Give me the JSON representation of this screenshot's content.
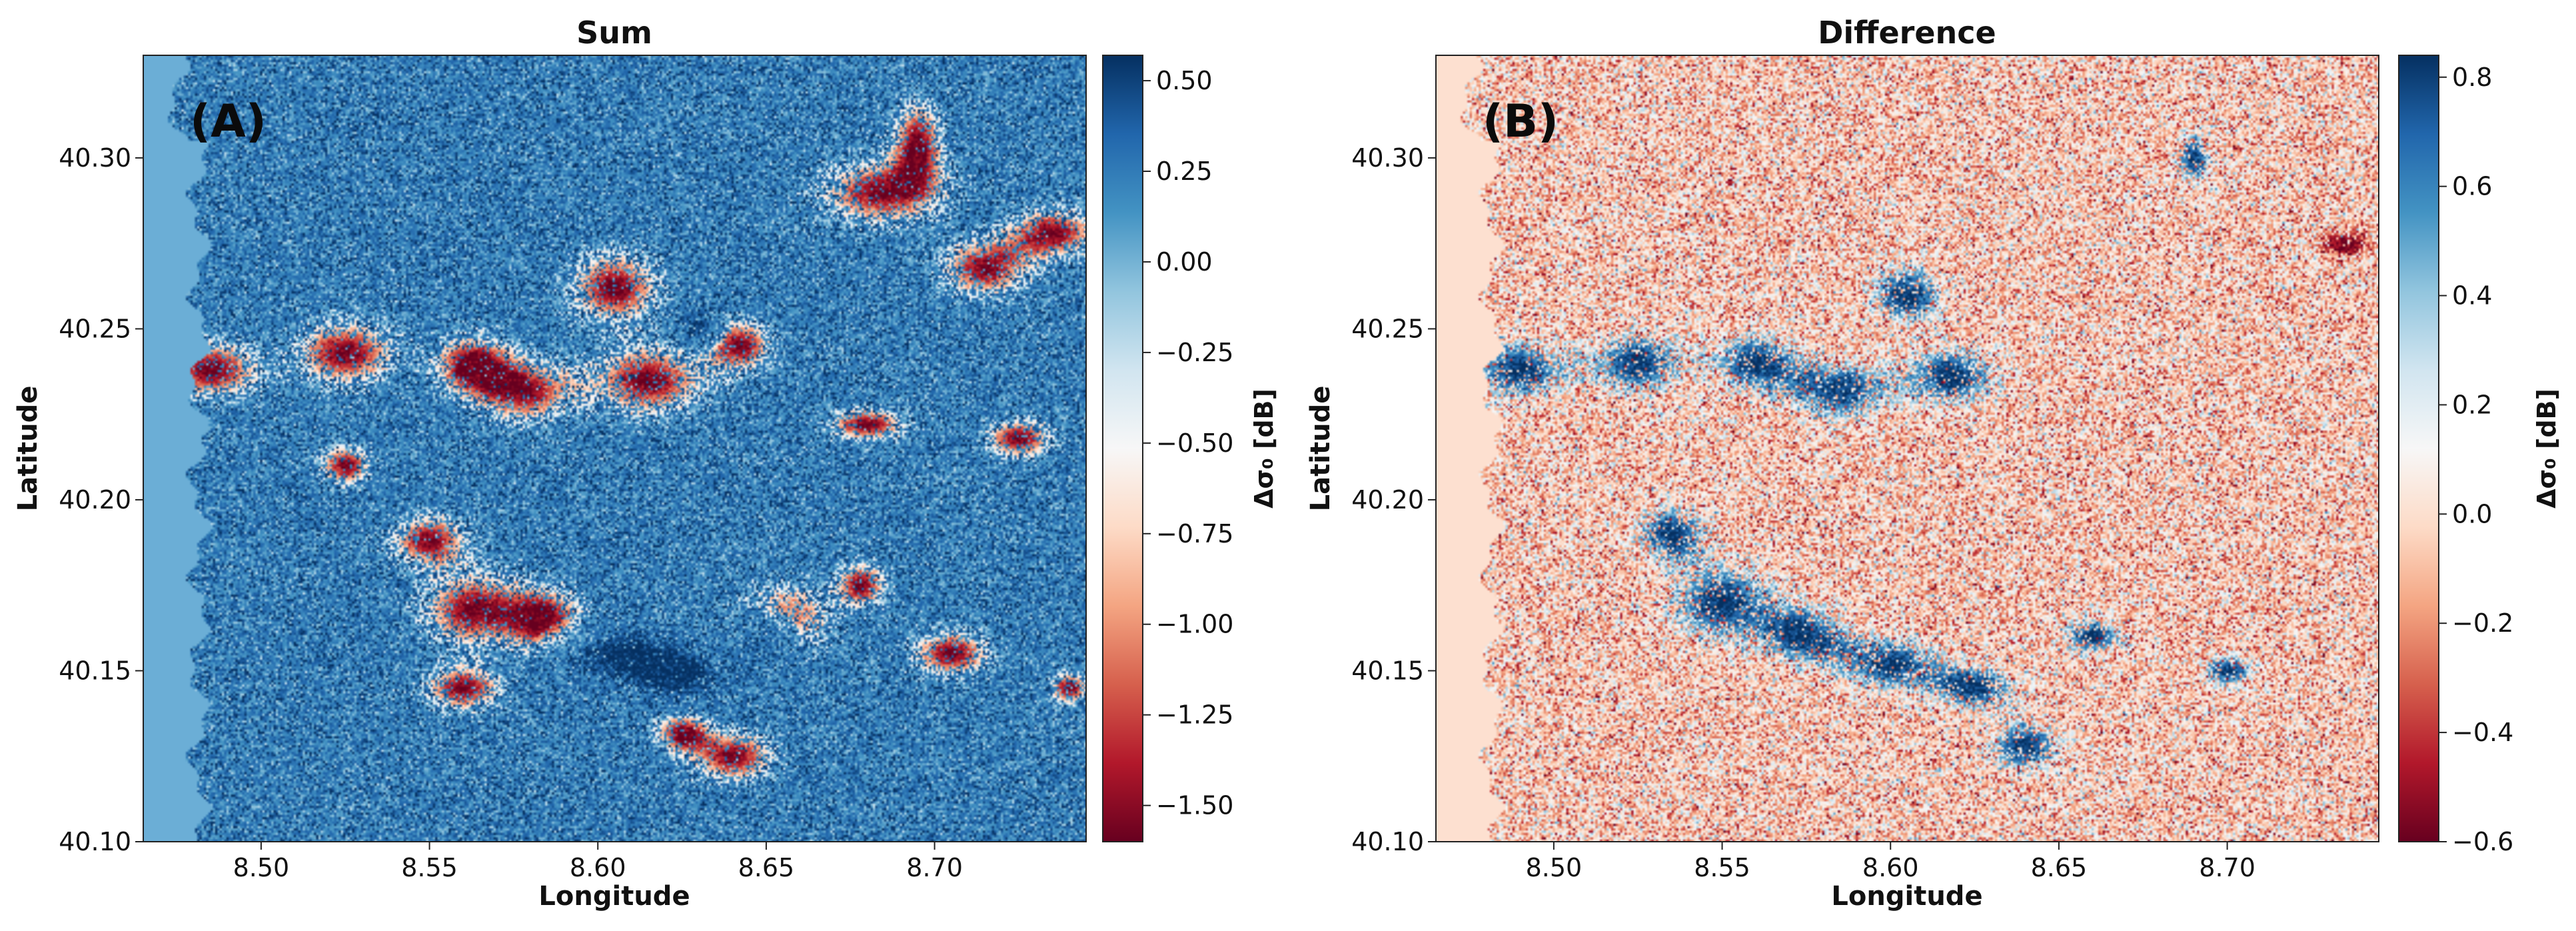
{
  "figure": {
    "panels": [
      {
        "key": "sum",
        "panel_label": "(A)",
        "land_color": "#6baed6",
        "blob_color": "#a50f15",
        "blob_sign": -1,
        "base_mean": 0.25,
        "noise_scale": 0.75
      },
      {
        "key": "difference",
        "panel_label": "(B)",
        "land_color": "#fde0d0",
        "blob_color": "#08519c",
        "blob_sign": 1,
        "base_mean": -0.05,
        "noise_scale": 0.9
      }
    ],
    "colormap": "RdBu",
    "colormap_stops": [
      "#67001f",
      "#b2182b",
      "#d6604d",
      "#f4a582",
      "#fddbc7",
      "#f7f7f7",
      "#d1e5f0",
      "#92c5de",
      "#4393c3",
      "#2166ac",
      "#053061"
    ]
  },
  "chart_data": [
    {
      "type": "heatmap",
      "title": "Sum",
      "xlabel": "Longitude",
      "ylabel": "Latitude",
      "xlim": [
        8.465,
        8.745
      ],
      "ylim": [
        40.1,
        40.33
      ],
      "xticks": [
        8.5,
        8.55,
        8.6,
        8.65,
        8.7
      ],
      "xtick_labels": [
        "8.50",
        "8.55",
        "8.60",
        "8.65",
        "8.70"
      ],
      "yticks": [
        40.1,
        40.15,
        40.2,
        40.25,
        40.3
      ],
      "ytick_labels": [
        "40.10",
        "40.15",
        "40.20",
        "40.25",
        "40.30"
      ],
      "colorbar": {
        "label": "Δσ₀ [dB]",
        "range": [
          -1.6,
          0.57
        ],
        "ticks": [
          0.5,
          0.25,
          0.0,
          -0.25,
          -0.5,
          -0.75,
          -1.0,
          -1.25,
          -1.5
        ],
        "tick_labels": [
          "0.50",
          "0.25",
          "0.00",
          "−0.25",
          "−0.50",
          "−0.75",
          "−1.00",
          "−1.25",
          "−1.50"
        ]
      },
      "features": [
        {
          "kind": "strong-negative",
          "lon": 8.485,
          "lat": 40.238,
          "rx": 0.016,
          "ry": 0.009
        },
        {
          "kind": "strong-negative",
          "lon": 8.525,
          "lat": 40.243,
          "rx": 0.016,
          "ry": 0.01
        },
        {
          "kind": "strong-negative",
          "lon": 8.562,
          "lat": 40.24,
          "rx": 0.012,
          "ry": 0.009
        },
        {
          "kind": "strong-negative",
          "lon": 8.578,
          "lat": 40.232,
          "rx": 0.016,
          "ry": 0.01
        },
        {
          "kind": "strong-negative",
          "lon": 8.605,
          "lat": 40.262,
          "rx": 0.014,
          "ry": 0.011
        },
        {
          "kind": "strong-negative",
          "lon": 8.615,
          "lat": 40.235,
          "rx": 0.018,
          "ry": 0.011
        },
        {
          "kind": "strong-negative",
          "lon": 8.642,
          "lat": 40.245,
          "rx": 0.01,
          "ry": 0.008
        },
        {
          "kind": "strong-negative",
          "lon": 8.685,
          "lat": 40.29,
          "rx": 0.02,
          "ry": 0.01
        },
        {
          "kind": "strong-negative",
          "lon": 8.695,
          "lat": 40.305,
          "rx": 0.008,
          "ry": 0.012
        },
        {
          "kind": "strong-negative",
          "lon": 8.715,
          "lat": 40.268,
          "rx": 0.014,
          "ry": 0.009
        },
        {
          "kind": "strong-negative",
          "lon": 8.735,
          "lat": 40.278,
          "rx": 0.014,
          "ry": 0.008
        },
        {
          "kind": "strong-negative",
          "lon": 8.525,
          "lat": 40.21,
          "rx": 0.008,
          "ry": 0.006
        },
        {
          "kind": "strong-negative",
          "lon": 8.725,
          "lat": 40.218,
          "rx": 0.01,
          "ry": 0.006
        },
        {
          "kind": "strong-negative",
          "lon": 8.68,
          "lat": 40.222,
          "rx": 0.012,
          "ry": 0.005
        },
        {
          "kind": "strong-negative",
          "lon": 8.55,
          "lat": 40.188,
          "rx": 0.012,
          "ry": 0.008
        },
        {
          "kind": "strong-negative",
          "lon": 8.563,
          "lat": 40.168,
          "rx": 0.016,
          "ry": 0.012
        },
        {
          "kind": "strong-negative",
          "lon": 8.585,
          "lat": 40.165,
          "rx": 0.012,
          "ry": 0.01
        },
        {
          "kind": "strong-negative",
          "lon": 8.56,
          "lat": 40.145,
          "rx": 0.012,
          "ry": 0.007
        },
        {
          "kind": "strong-negative",
          "lon": 8.655,
          "lat": 40.165,
          "rx": 0.014,
          "ry": 0.01
        },
        {
          "kind": "strong-negative",
          "lon": 8.678,
          "lat": 40.175,
          "rx": 0.008,
          "ry": 0.007
        },
        {
          "kind": "strong-negative",
          "lon": 8.64,
          "lat": 40.125,
          "rx": 0.013,
          "ry": 0.008
        },
        {
          "kind": "strong-negative",
          "lon": 8.625,
          "lat": 40.132,
          "rx": 0.008,
          "ry": 0.006
        },
        {
          "kind": "strong-negative",
          "lon": 8.705,
          "lat": 40.155,
          "rx": 0.012,
          "ry": 0.007
        },
        {
          "kind": "strong-negative",
          "lon": 8.74,
          "lat": 40.145,
          "rx": 0.006,
          "ry": 0.005
        },
        {
          "kind": "strong-positive",
          "lon": 8.607,
          "lat": 40.155,
          "rx": 0.018,
          "ry": 0.009
        },
        {
          "kind": "strong-positive",
          "lon": 8.625,
          "lat": 40.148,
          "rx": 0.014,
          "ry": 0.008
        },
        {
          "kind": "strong-positive",
          "lon": 8.65,
          "lat": 40.16,
          "rx": 0.01,
          "ry": 0.008
        },
        {
          "kind": "strong-positive",
          "lon": 8.63,
          "lat": 40.25,
          "rx": 0.006,
          "ry": 0.005
        }
      ]
    },
    {
      "type": "heatmap",
      "title": "Difference",
      "xlabel": "Longitude",
      "ylabel": "Latitude",
      "xlim": [
        8.465,
        8.745
      ],
      "ylim": [
        40.1,
        40.33
      ],
      "xticks": [
        8.5,
        8.55,
        8.6,
        8.65,
        8.7
      ],
      "xtick_labels": [
        "8.50",
        "8.55",
        "8.60",
        "8.65",
        "8.70"
      ],
      "yticks": [
        40.1,
        40.15,
        40.2,
        40.25,
        40.3
      ],
      "ytick_labels": [
        "40.10",
        "40.15",
        "40.20",
        "40.25",
        "40.30"
      ],
      "colorbar": {
        "label": "Δσ₀ [dB]",
        "range": [
          -0.6,
          0.84
        ],
        "ticks": [
          0.8,
          0.6,
          0.4,
          0.2,
          0.0,
          -0.2,
          -0.4,
          -0.6
        ],
        "tick_labels": [
          "0.8",
          "0.6",
          "0.4",
          "0.2",
          "0.0",
          "−0.2",
          "−0.4",
          "−0.6"
        ]
      },
      "features": [
        {
          "kind": "strong-positive",
          "lon": 8.49,
          "lat": 40.238,
          "rx": 0.016,
          "ry": 0.01
        },
        {
          "kind": "strong-positive",
          "lon": 8.525,
          "lat": 40.24,
          "rx": 0.016,
          "ry": 0.01
        },
        {
          "kind": "strong-positive",
          "lon": 8.56,
          "lat": 40.24,
          "rx": 0.014,
          "ry": 0.01
        },
        {
          "kind": "strong-positive",
          "lon": 8.585,
          "lat": 40.232,
          "rx": 0.016,
          "ry": 0.01
        },
        {
          "kind": "strong-positive",
          "lon": 8.605,
          "lat": 40.26,
          "rx": 0.012,
          "ry": 0.01
        },
        {
          "kind": "strong-positive",
          "lon": 8.618,
          "lat": 40.236,
          "rx": 0.016,
          "ry": 0.01
        },
        {
          "kind": "strong-positive",
          "lon": 8.535,
          "lat": 40.19,
          "rx": 0.012,
          "ry": 0.009
        },
        {
          "kind": "strong-positive",
          "lon": 8.55,
          "lat": 40.17,
          "rx": 0.018,
          "ry": 0.013
        },
        {
          "kind": "strong-positive",
          "lon": 8.575,
          "lat": 40.16,
          "rx": 0.014,
          "ry": 0.01
        },
        {
          "kind": "strong-positive",
          "lon": 8.6,
          "lat": 40.152,
          "rx": 0.016,
          "ry": 0.009
        },
        {
          "kind": "strong-positive",
          "lon": 8.625,
          "lat": 40.145,
          "rx": 0.014,
          "ry": 0.008
        },
        {
          "kind": "strong-positive",
          "lon": 8.64,
          "lat": 40.128,
          "rx": 0.012,
          "ry": 0.008
        },
        {
          "kind": "strong-positive",
          "lon": 8.66,
          "lat": 40.16,
          "rx": 0.01,
          "ry": 0.006
        },
        {
          "kind": "strong-positive",
          "lon": 8.69,
          "lat": 40.3,
          "rx": 0.006,
          "ry": 0.008
        },
        {
          "kind": "strong-positive",
          "lon": 8.7,
          "lat": 40.15,
          "rx": 0.008,
          "ry": 0.005
        },
        {
          "kind": "strong-negative",
          "lon": 8.735,
          "lat": 40.275,
          "rx": 0.01,
          "ry": 0.005
        }
      ]
    }
  ]
}
